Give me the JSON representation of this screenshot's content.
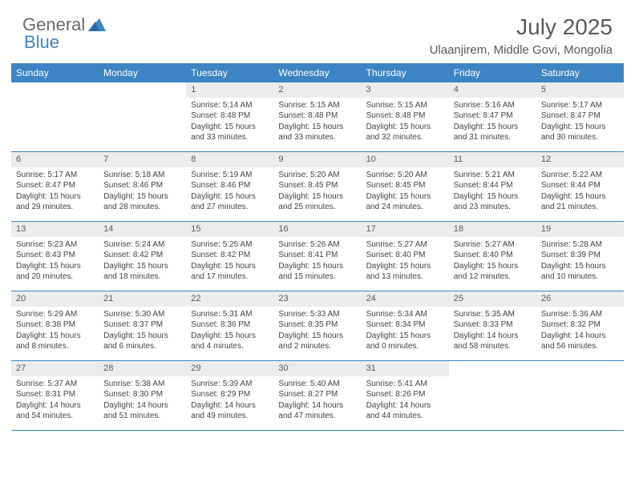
{
  "brand": {
    "part1": "General",
    "part2": "Blue"
  },
  "title": "July 2025",
  "location": "Ulaanjirem, Middle Govi, Mongolia",
  "colors": {
    "header_bg": "#3d84c4",
    "header_text": "#ffffff",
    "daynum_bg": "#ececec",
    "text": "#444444",
    "brand_gray": "#6a6a6a",
    "brand_blue": "#3d84c4"
  },
  "day_names": [
    "Sunday",
    "Monday",
    "Tuesday",
    "Wednesday",
    "Thursday",
    "Friday",
    "Saturday"
  ],
  "weeks": [
    [
      null,
      null,
      {
        "n": "1",
        "sunrise": "Sunrise: 5:14 AM",
        "sunset": "Sunset: 8:48 PM",
        "day1": "Daylight: 15 hours",
        "day2": "and 33 minutes."
      },
      {
        "n": "2",
        "sunrise": "Sunrise: 5:15 AM",
        "sunset": "Sunset: 8:48 PM",
        "day1": "Daylight: 15 hours",
        "day2": "and 33 minutes."
      },
      {
        "n": "3",
        "sunrise": "Sunrise: 5:15 AM",
        "sunset": "Sunset: 8:48 PM",
        "day1": "Daylight: 15 hours",
        "day2": "and 32 minutes."
      },
      {
        "n": "4",
        "sunrise": "Sunrise: 5:16 AM",
        "sunset": "Sunset: 8:47 PM",
        "day1": "Daylight: 15 hours",
        "day2": "and 31 minutes."
      },
      {
        "n": "5",
        "sunrise": "Sunrise: 5:17 AM",
        "sunset": "Sunset: 8:47 PM",
        "day1": "Daylight: 15 hours",
        "day2": "and 30 minutes."
      }
    ],
    [
      {
        "n": "6",
        "sunrise": "Sunrise: 5:17 AM",
        "sunset": "Sunset: 8:47 PM",
        "day1": "Daylight: 15 hours",
        "day2": "and 29 minutes."
      },
      {
        "n": "7",
        "sunrise": "Sunrise: 5:18 AM",
        "sunset": "Sunset: 8:46 PM",
        "day1": "Daylight: 15 hours",
        "day2": "and 28 minutes."
      },
      {
        "n": "8",
        "sunrise": "Sunrise: 5:19 AM",
        "sunset": "Sunset: 8:46 PM",
        "day1": "Daylight: 15 hours",
        "day2": "and 27 minutes."
      },
      {
        "n": "9",
        "sunrise": "Sunrise: 5:20 AM",
        "sunset": "Sunset: 8:45 PM",
        "day1": "Daylight: 15 hours",
        "day2": "and 25 minutes."
      },
      {
        "n": "10",
        "sunrise": "Sunrise: 5:20 AM",
        "sunset": "Sunset: 8:45 PM",
        "day1": "Daylight: 15 hours",
        "day2": "and 24 minutes."
      },
      {
        "n": "11",
        "sunrise": "Sunrise: 5:21 AM",
        "sunset": "Sunset: 8:44 PM",
        "day1": "Daylight: 15 hours",
        "day2": "and 23 minutes."
      },
      {
        "n": "12",
        "sunrise": "Sunrise: 5:22 AM",
        "sunset": "Sunset: 8:44 PM",
        "day1": "Daylight: 15 hours",
        "day2": "and 21 minutes."
      }
    ],
    [
      {
        "n": "13",
        "sunrise": "Sunrise: 5:23 AM",
        "sunset": "Sunset: 8:43 PM",
        "day1": "Daylight: 15 hours",
        "day2": "and 20 minutes."
      },
      {
        "n": "14",
        "sunrise": "Sunrise: 5:24 AM",
        "sunset": "Sunset: 8:42 PM",
        "day1": "Daylight: 15 hours",
        "day2": "and 18 minutes."
      },
      {
        "n": "15",
        "sunrise": "Sunrise: 5:25 AM",
        "sunset": "Sunset: 8:42 PM",
        "day1": "Daylight: 15 hours",
        "day2": "and 17 minutes."
      },
      {
        "n": "16",
        "sunrise": "Sunrise: 5:26 AM",
        "sunset": "Sunset: 8:41 PM",
        "day1": "Daylight: 15 hours",
        "day2": "and 15 minutes."
      },
      {
        "n": "17",
        "sunrise": "Sunrise: 5:27 AM",
        "sunset": "Sunset: 8:40 PM",
        "day1": "Daylight: 15 hours",
        "day2": "and 13 minutes."
      },
      {
        "n": "18",
        "sunrise": "Sunrise: 5:27 AM",
        "sunset": "Sunset: 8:40 PM",
        "day1": "Daylight: 15 hours",
        "day2": "and 12 minutes."
      },
      {
        "n": "19",
        "sunrise": "Sunrise: 5:28 AM",
        "sunset": "Sunset: 8:39 PM",
        "day1": "Daylight: 15 hours",
        "day2": "and 10 minutes."
      }
    ],
    [
      {
        "n": "20",
        "sunrise": "Sunrise: 5:29 AM",
        "sunset": "Sunset: 8:38 PM",
        "day1": "Daylight: 15 hours",
        "day2": "and 8 minutes."
      },
      {
        "n": "21",
        "sunrise": "Sunrise: 5:30 AM",
        "sunset": "Sunset: 8:37 PM",
        "day1": "Daylight: 15 hours",
        "day2": "and 6 minutes."
      },
      {
        "n": "22",
        "sunrise": "Sunrise: 5:31 AM",
        "sunset": "Sunset: 8:36 PM",
        "day1": "Daylight: 15 hours",
        "day2": "and 4 minutes."
      },
      {
        "n": "23",
        "sunrise": "Sunrise: 5:33 AM",
        "sunset": "Sunset: 8:35 PM",
        "day1": "Daylight: 15 hours",
        "day2": "and 2 minutes."
      },
      {
        "n": "24",
        "sunrise": "Sunrise: 5:34 AM",
        "sunset": "Sunset: 8:34 PM",
        "day1": "Daylight: 15 hours",
        "day2": "and 0 minutes."
      },
      {
        "n": "25",
        "sunrise": "Sunrise: 5:35 AM",
        "sunset": "Sunset: 8:33 PM",
        "day1": "Daylight: 14 hours",
        "day2": "and 58 minutes."
      },
      {
        "n": "26",
        "sunrise": "Sunrise: 5:36 AM",
        "sunset": "Sunset: 8:32 PM",
        "day1": "Daylight: 14 hours",
        "day2": "and 56 minutes."
      }
    ],
    [
      {
        "n": "27",
        "sunrise": "Sunrise: 5:37 AM",
        "sunset": "Sunset: 8:31 PM",
        "day1": "Daylight: 14 hours",
        "day2": "and 54 minutes."
      },
      {
        "n": "28",
        "sunrise": "Sunrise: 5:38 AM",
        "sunset": "Sunset: 8:30 PM",
        "day1": "Daylight: 14 hours",
        "day2": "and 51 minutes."
      },
      {
        "n": "29",
        "sunrise": "Sunrise: 5:39 AM",
        "sunset": "Sunset: 8:29 PM",
        "day1": "Daylight: 14 hours",
        "day2": "and 49 minutes."
      },
      {
        "n": "30",
        "sunrise": "Sunrise: 5:40 AM",
        "sunset": "Sunset: 8:27 PM",
        "day1": "Daylight: 14 hours",
        "day2": "and 47 minutes."
      },
      {
        "n": "31",
        "sunrise": "Sunrise: 5:41 AM",
        "sunset": "Sunset: 8:26 PM",
        "day1": "Daylight: 14 hours",
        "day2": "and 44 minutes."
      },
      null,
      null
    ]
  ]
}
